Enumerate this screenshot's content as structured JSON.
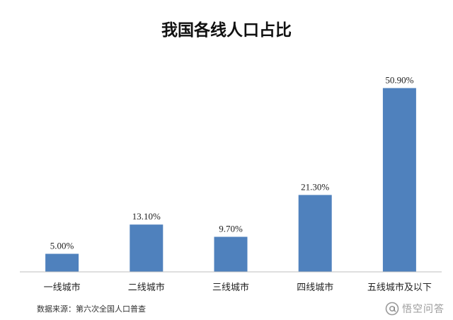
{
  "chart_data": {
    "type": "bar",
    "title": "我国各线人口占比",
    "categories": [
      "一线城市",
      "二线城市",
      "三线城市",
      "四线城市",
      "五线城市及以下"
    ],
    "values": [
      5.0,
      13.1,
      9.7,
      21.3,
      50.9
    ],
    "value_labels": [
      "5.00%",
      "13.10%",
      "9.70%",
      "21.30%",
      "50.90%"
    ],
    "ylim": [
      0,
      60
    ],
    "grid": false,
    "colors": {
      "bar": "#4f81bd",
      "axis": "#bfbfbf"
    }
  },
  "source_note": "数据来源：第六次全国人口普查",
  "watermark": {
    "text": "悟空问答",
    "icon": "at-sign-icon"
  }
}
